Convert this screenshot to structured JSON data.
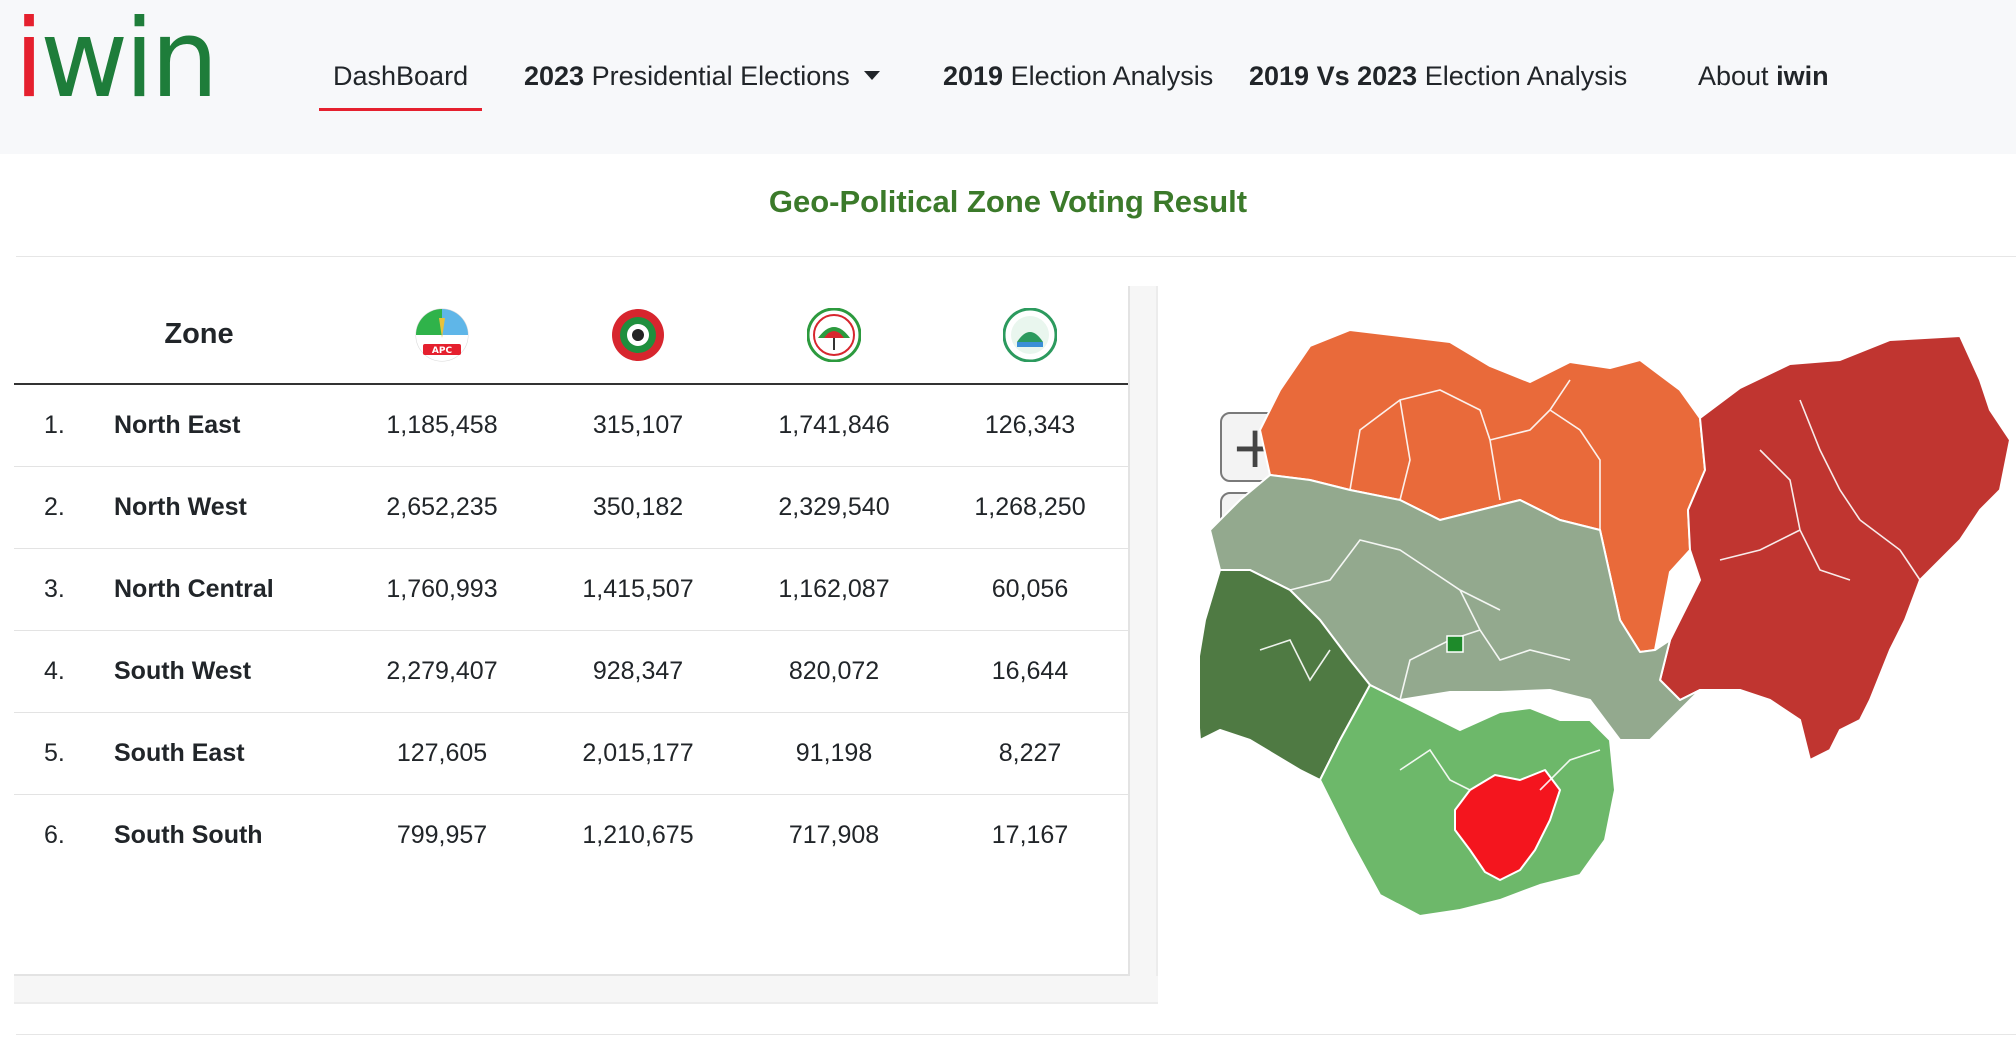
{
  "logo": {
    "text_i": "i",
    "text_rest": "win"
  },
  "nav": {
    "dashboard": "DashBoard",
    "presidential_bold": "2023",
    "presidential_rest": "Presidential Elections",
    "analysis2019_bold": "2019",
    "analysis2019_rest": "Election Analysis",
    "compare_bold": "2019 Vs 2023",
    "compare_rest": "Election Analysis",
    "about_rest": "About",
    "about_bold": "iwin"
  },
  "section": {
    "title": "Geo-Political Zone Voting Result"
  },
  "table": {
    "zone_header": "Zone",
    "party_logos": [
      "apc-logo-icon",
      "lp-logo-icon",
      "pdp-logo-icon",
      "nnpp-logo-icon"
    ],
    "apc_label": "APC",
    "rows": [
      {
        "num": "1.",
        "zone": "North East",
        "v": [
          "1,185,458",
          "315,107",
          "1,741,846",
          "126,343"
        ]
      },
      {
        "num": "2.",
        "zone": "North West",
        "v": [
          "2,652,235",
          "350,182",
          "2,329,540",
          "1,268,250"
        ]
      },
      {
        "num": "3.",
        "zone": "North Central",
        "v": [
          "1,760,993",
          "1,415,507",
          "1,162,087",
          "60,056"
        ]
      },
      {
        "num": "4.",
        "zone": "South West",
        "v": [
          "2,279,407",
          "928,347",
          "820,072",
          "16,644"
        ]
      },
      {
        "num": "5.",
        "zone": "South East",
        "v": [
          "127,605",
          "2,015,177",
          "91,198",
          "8,227"
        ]
      },
      {
        "num": "6.",
        "zone": "South South",
        "v": [
          "799,957",
          "1,210,675",
          "717,908",
          "17,167"
        ]
      }
    ]
  },
  "map": {
    "zoom_in": "+",
    "zoom_out": "—",
    "zone_colors": {
      "north_west": "#e96a3a",
      "north_east": "#c03530",
      "north_central": "#93a98e",
      "south_west": "#4f7a43",
      "south_south": "#6db86a",
      "south_east": "#f4151e",
      "fct_marker": "#1e8a2a"
    }
  }
}
